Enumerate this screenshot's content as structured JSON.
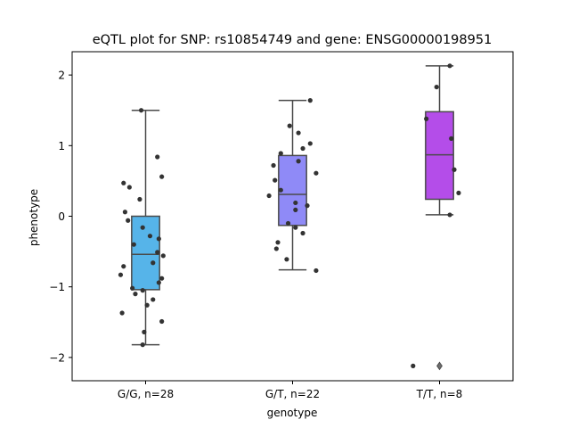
{
  "chart_data": {
    "type": "box",
    "title": "eQTL plot for SNP: rs10854749 and gene: ENSG00000198951",
    "xlabel": "genotype",
    "ylabel": "phenotype",
    "ylim": [
      -2.33,
      2.33
    ],
    "yticks": [
      -2,
      -1,
      0,
      1,
      2
    ],
    "ytick_labels": [
      "−2",
      "−1",
      "0",
      "1",
      "2"
    ],
    "grid": false,
    "categories": [
      "G/G, n=28",
      "G/T, n=22",
      "T/T, n=8"
    ],
    "colors": [
      "#56b4e9",
      "#8f8af7",
      "#b44de9"
    ],
    "boxes": [
      {
        "category": "G/G, n=28",
        "whisker_low": -1.82,
        "q1": -1.04,
        "median": -0.54,
        "q3": 0.0,
        "whisker_high": 1.5,
        "outliers": []
      },
      {
        "category": "G/T, n=22",
        "whisker_low": -0.76,
        "q1": -0.13,
        "median": 0.31,
        "q3": 0.86,
        "whisker_high": 1.64,
        "outliers": []
      },
      {
        "category": "T/T, n=8",
        "whisker_low": 0.02,
        "q1": 0.24,
        "median": 0.87,
        "q3": 1.48,
        "whisker_high": 2.13,
        "outliers": [
          -2.12
        ]
      }
    ],
    "points": [
      [
        {
          "dx": -0.03,
          "y": 1.5
        },
        {
          "dx": 0.08,
          "y": 0.84
        },
        {
          "dx": 0.11,
          "y": 0.56
        },
        {
          "dx": -0.15,
          "y": 0.47
        },
        {
          "dx": -0.11,
          "y": 0.41
        },
        {
          "dx": -0.04,
          "y": 0.24
        },
        {
          "dx": -0.14,
          "y": 0.06
        },
        {
          "dx": -0.12,
          "y": -0.06
        },
        {
          "dx": -0.02,
          "y": -0.16
        },
        {
          "dx": 0.03,
          "y": -0.28
        },
        {
          "dx": 0.09,
          "y": -0.32
        },
        {
          "dx": -0.08,
          "y": -0.4
        },
        {
          "dx": 0.08,
          "y": -0.51
        },
        {
          "dx": 0.12,
          "y": -0.56
        },
        {
          "dx": 0.05,
          "y": -0.66
        },
        {
          "dx": -0.15,
          "y": -0.71
        },
        {
          "dx": -0.17,
          "y": -0.83
        },
        {
          "dx": 0.11,
          "y": -0.88
        },
        {
          "dx": 0.09,
          "y": -0.94
        },
        {
          "dx": -0.09,
          "y": -1.02
        },
        {
          "dx": -0.02,
          "y": -1.05
        },
        {
          "dx": -0.07,
          "y": -1.1
        },
        {
          "dx": 0.05,
          "y": -1.18
        },
        {
          "dx": 0.01,
          "y": -1.26
        },
        {
          "dx": -0.16,
          "y": -1.37
        },
        {
          "dx": 0.11,
          "y": -1.49
        },
        {
          "dx": -0.01,
          "y": -1.64
        },
        {
          "dx": -0.02,
          "y": -1.82
        }
      ],
      [
        {
          "dx": 0.12,
          "y": 1.64
        },
        {
          "dx": -0.02,
          "y": 1.28
        },
        {
          "dx": 0.04,
          "y": 1.18
        },
        {
          "dx": 0.12,
          "y": 1.03
        },
        {
          "dx": 0.07,
          "y": 0.96
        },
        {
          "dx": -0.08,
          "y": 0.89
        },
        {
          "dx": 0.04,
          "y": 0.78
        },
        {
          "dx": -0.13,
          "y": 0.72
        },
        {
          "dx": 0.16,
          "y": 0.61
        },
        {
          "dx": -0.12,
          "y": 0.51
        },
        {
          "dx": -0.08,
          "y": 0.37
        },
        {
          "dx": -0.16,
          "y": 0.29
        },
        {
          "dx": 0.02,
          "y": 0.19
        },
        {
          "dx": 0.1,
          "y": 0.15
        },
        {
          "dx": 0.02,
          "y": 0.09
        },
        {
          "dx": -0.03,
          "y": -0.1
        },
        {
          "dx": 0.02,
          "y": -0.16
        },
        {
          "dx": 0.07,
          "y": -0.24
        },
        {
          "dx": -0.1,
          "y": -0.37
        },
        {
          "dx": -0.11,
          "y": -0.46
        },
        {
          "dx": -0.04,
          "y": -0.61
        },
        {
          "dx": 0.16,
          "y": -0.77
        }
      ],
      [
        {
          "dx": 0.07,
          "y": 2.13
        },
        {
          "dx": -0.02,
          "y": 1.83
        },
        {
          "dx": -0.09,
          "y": 1.38
        },
        {
          "dx": 0.08,
          "y": 1.1
        },
        {
          "dx": 0.1,
          "y": 0.66
        },
        {
          "dx": 0.13,
          "y": 0.33
        },
        {
          "dx": 0.07,
          "y": 0.02
        },
        {
          "dx": -0.18,
          "y": -2.12
        }
      ]
    ]
  }
}
